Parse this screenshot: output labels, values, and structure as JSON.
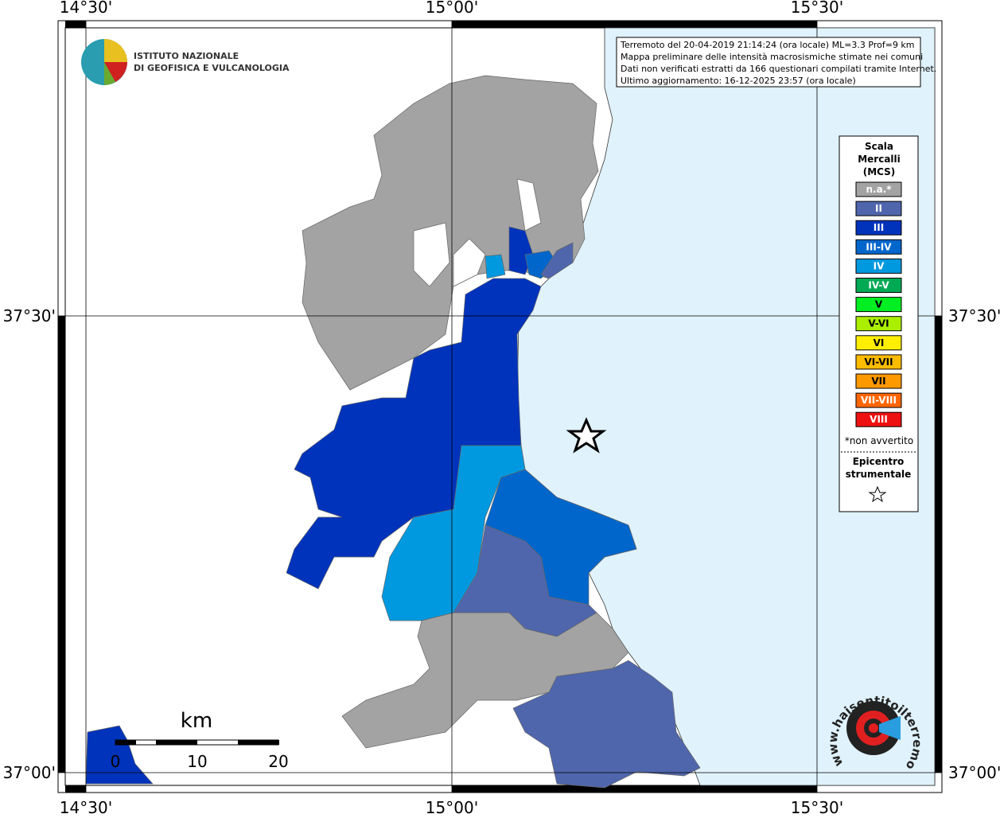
{
  "map": {
    "lon_labels": [
      "14°30'",
      "15°00'",
      "15°30'"
    ],
    "lat_labels": [
      "37°30'",
      "37°00'"
    ],
    "institute": [
      "ISTITUTO NAZIONALE",
      "DI GEOFISICA E VULCANOLOGIA"
    ],
    "info": [
      "Terremoto del 20-04-2019 21:14:24 (ora locale) ML=3.3 Prof=9 km",
      "Mappa preliminare delle intensità macrosismiche stimate nei comuni",
      "Dati non verificati estratti da 166 questionari compilati tramite Internet.",
      "Ultimo aggiornamento: 16-12-2025 23:57 (ora locale)"
    ],
    "legend": {
      "title": [
        "Scala",
        "Mercalli",
        "(MCS)"
      ],
      "items": [
        {
          "label": "n.a.*",
          "color": "#a3a3a3"
        },
        {
          "label": "II",
          "color": "#4f66ad"
        },
        {
          "label": "III",
          "color": "#0033bb"
        },
        {
          "label": "III-IV",
          "color": "#0066cc"
        },
        {
          "label": "IV",
          "color": "#0099e0"
        },
        {
          "label": "IV-V",
          "color": "#00aa55"
        },
        {
          "label": "V",
          "color": "#00ee22"
        },
        {
          "label": "V-VI",
          "color": "#aaee00"
        },
        {
          "label": "VI",
          "color": "#ffee00"
        },
        {
          "label": "VI-VII",
          "color": "#ffbb00"
        },
        {
          "label": "VII",
          "color": "#ff9900"
        },
        {
          "label": "VII-VIII",
          "color": "#ff6600"
        },
        {
          "label": "VIII",
          "color": "#ee1111"
        }
      ],
      "note": "*non avvertito",
      "epicenter": [
        "Epicentro",
        "strumentale"
      ]
    },
    "scale": {
      "unit": "km",
      "ticks": [
        "0",
        "10",
        "20"
      ]
    },
    "site": "www.haisentitoilterremoto.it"
  }
}
